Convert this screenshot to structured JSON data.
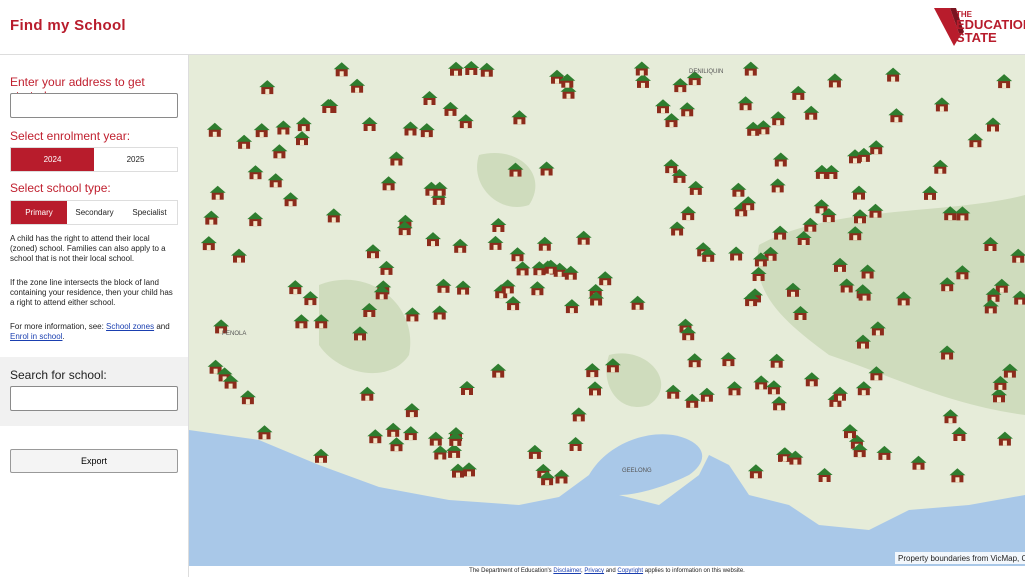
{
  "header": {
    "title": "Find my School",
    "logo": {
      "top": "THE",
      "middle": "EDUCATION",
      "bottom": "STATE"
    }
  },
  "sidebar": {
    "address_prompt": "Enter your address to get started:",
    "enrolment_prompt": "Select enrolment year:",
    "years": [
      "2024",
      "2025"
    ],
    "school_type_prompt": "Select school type:",
    "school_types": [
      "Primary",
      "Secondary",
      "Specialist"
    ],
    "note1": "A child has the right to attend their local (zoned) school. Families can also apply to a school that is not their local school.",
    "note2": "If the zone line intersects the block of land containing your residence, then your child has a right to attend either school.",
    "more_info": {
      "text": "For more information, see:",
      "link1": "School zones",
      "and": "and",
      "link2": "Enrol in school",
      "end": "."
    },
    "search_prompt": "Search for school:",
    "export": "Export"
  },
  "map": {
    "places": [
      "DENILIQUIN",
      "PENOLA",
      "GEELONG"
    ],
    "attribution": "Property boundaries from VicMap, CC"
  },
  "footer": {
    "text1": "The Department of Education's",
    "link1": "Disclaimer",
    "sep": ",",
    "link2": "Privacy",
    "and": "and",
    "link3": "Copyright",
    "text2": "applies to information on this website."
  }
}
